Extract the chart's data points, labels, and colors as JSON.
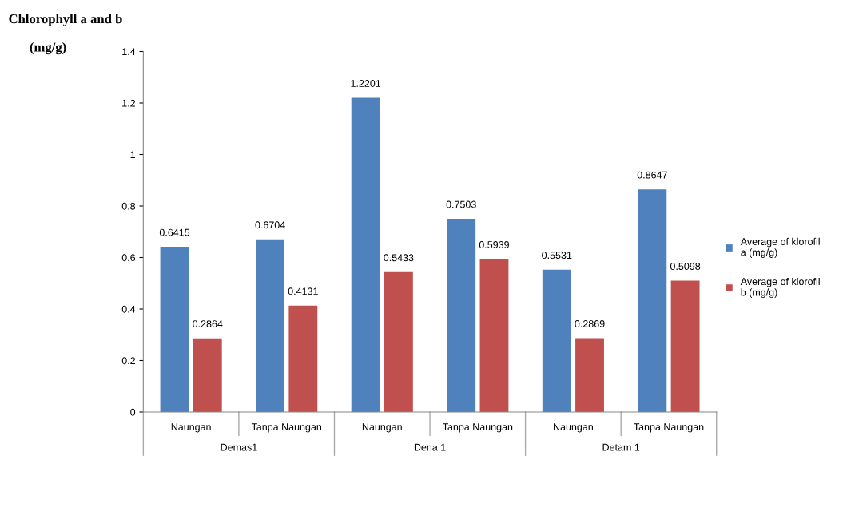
{
  "chart_data": {
    "type": "bar",
    "title": "Chlorophyll a and b",
    "ylabel": "(mg/g)",
    "categories": [
      "Naungan",
      "Tanpa Naungan",
      "Naungan",
      "Tanpa Naungan",
      "Naungan",
      "Tanpa Naungan"
    ],
    "annotations": [
      "Demas1",
      "Dena 1",
      "Detam 1"
    ],
    "series": [
      {
        "name": "Average of klorofil a (mg/g)",
        "color": "#4f81bd",
        "values": [
          0.6415,
          0.6704,
          1.2201,
          0.7503,
          0.5531,
          0.8647
        ]
      },
      {
        "name": "Average of klorofil b (mg/g)",
        "color": "#c0504d",
        "values": [
          0.2864,
          0.4131,
          0.5433,
          0.5939,
          0.2869,
          0.5098
        ]
      }
    ],
    "ylim": [
      0,
      1.4
    ],
    "yticks": [
      0,
      0.2,
      0.4,
      0.6,
      0.8,
      1,
      1.2,
      1.4
    ],
    "data_labels": true,
    "grid": false,
    "legend": "right"
  }
}
